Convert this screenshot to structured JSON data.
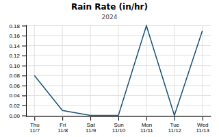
{
  "chart_data": {
    "type": "line",
    "title": "Rain Rate (in/hr)",
    "subtitle": "2024",
    "categories": [
      "Thu\n11/7",
      "Fri\n11/8",
      "Sat\n11/9",
      "Sun\n11/10",
      "Mon\n11/11",
      "Tue\n11/12",
      "Wed\n11/13"
    ],
    "values": [
      0.08,
      0.01,
      0.0,
      0.0,
      0.18,
      0.0,
      0.17
    ],
    "color": "#1a5276",
    "ylim": [
      -0.002,
      0.182
    ],
    "yticks": [
      {
        "value": 0.0,
        "label": "0.00"
      },
      0.02,
      0.04,
      0.06,
      0.08,
      {
        "value": 0.1,
        "label": "0.10"
      },
      0.12,
      0.14,
      0.16,
      0.18
    ],
    "grid": true
  }
}
